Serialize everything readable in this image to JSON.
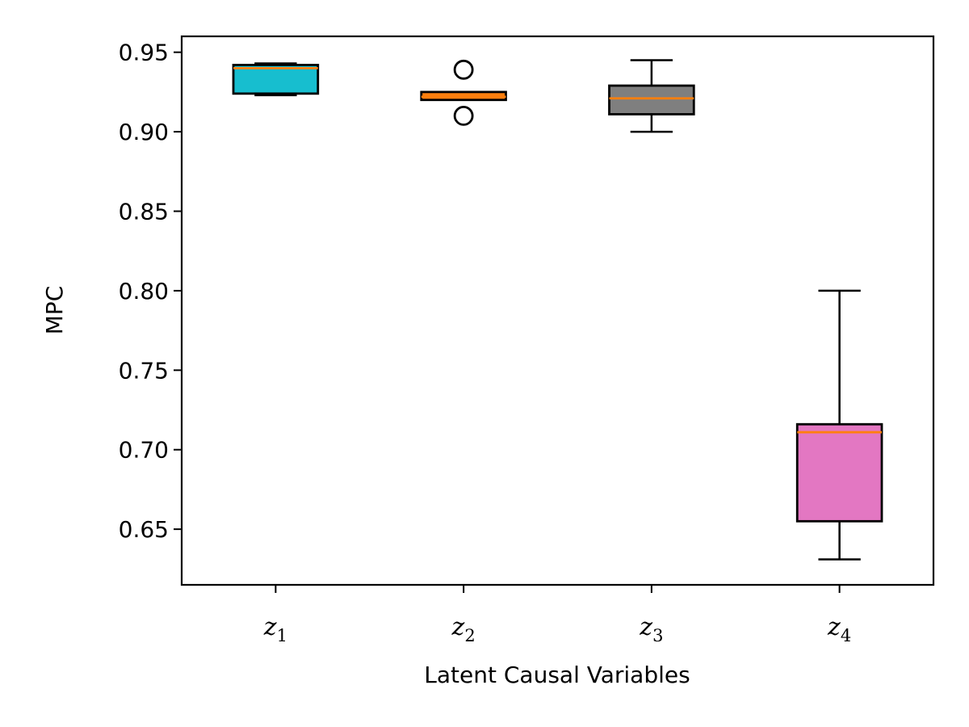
{
  "chart_data": {
    "type": "box",
    "title": "",
    "xlabel": "Latent Causal Variables",
    "ylabel": "MPC",
    "ylim": [
      0.615,
      0.96
    ],
    "yticks": [
      0.65,
      0.7,
      0.75,
      0.8,
      0.85,
      0.9,
      0.95
    ],
    "ytick_labels": [
      "0.65",
      "0.70",
      "0.75",
      "0.80",
      "0.85",
      "0.90",
      "0.95"
    ],
    "median_color": "#ff7f0e",
    "grid": false,
    "boxes": [
      {
        "name_base": "z",
        "name_sub": "1",
        "color": "#17becf",
        "whisker_low": 0.923,
        "q1": 0.924,
        "median": 0.94,
        "q3": 0.942,
        "whisker_high": 0.943,
        "outliers": []
      },
      {
        "name_base": "z",
        "name_sub": "2",
        "color": "#ff7f0e",
        "whisker_low": 0.92,
        "q1": 0.92,
        "median": 0.922,
        "q3": 0.925,
        "whisker_high": 0.925,
        "outliers": [
          0.91,
          0.939
        ]
      },
      {
        "name_base": "z",
        "name_sub": "3",
        "color": "#7f7f7f",
        "whisker_low": 0.9,
        "q1": 0.911,
        "median": 0.921,
        "q3": 0.929,
        "whisker_high": 0.945,
        "outliers": []
      },
      {
        "name_base": "z",
        "name_sub": "4",
        "color": "#e377c2",
        "whisker_low": 0.631,
        "q1": 0.655,
        "median": 0.711,
        "q3": 0.716,
        "whisker_high": 0.8,
        "outliers": []
      }
    ]
  }
}
